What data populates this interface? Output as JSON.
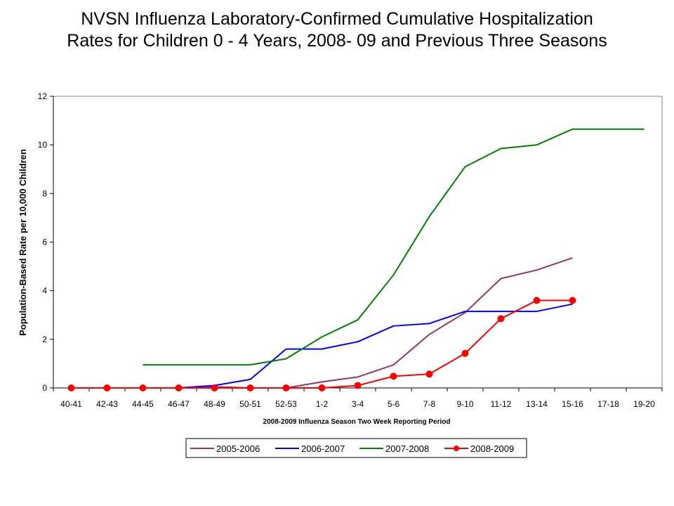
{
  "chart_data": {
    "type": "line",
    "title_line1": "NVSN Influenza Laboratory-Confirmed Cumulative Hospitalization",
    "title_line2": "Rates for Children 0 - 4 Years, 2008- 09 and Previous Three Seasons",
    "xlabel": "2008-2009 Influenza Season Two Week Reporting Period",
    "ylabel": "Population-Based Rate per 10,000 Children",
    "ylim": [
      0,
      12
    ],
    "yticks": [
      "0",
      "2",
      "4",
      "6",
      "8",
      "10",
      "12"
    ],
    "categories": [
      "40-41",
      "42-43",
      "44-45",
      "46-47",
      "48-49",
      "50-51",
      "52-53",
      "1-2",
      "3-4",
      "5-6",
      "7-8",
      "9-10",
      "11-12",
      "13-14",
      "15-16",
      "17-18",
      "19-20"
    ],
    "grid": false,
    "legend_position": "bottom",
    "series": [
      {
        "name": "2005-2006",
        "color": "#993366",
        "marker": "none",
        "values": [
          null,
          null,
          null,
          0,
          0.05,
          0,
          0,
          0.25,
          0.45,
          0.95,
          2.2,
          3.1,
          4.5,
          4.85,
          5.35,
          null,
          null
        ]
      },
      {
        "name": "2006-2007",
        "color": "#0000ff",
        "marker": "none",
        "values": [
          null,
          null,
          null,
          0,
          0.1,
          0.35,
          1.6,
          1.6,
          1.9,
          2.55,
          2.65,
          3.15,
          3.15,
          3.15,
          3.45,
          null,
          null
        ]
      },
      {
        "name": "2007-2008",
        "color": "#008000",
        "marker": "none",
        "values": [
          null,
          null,
          0.95,
          0.95,
          0.95,
          0.95,
          1.2,
          2.1,
          2.8,
          4.65,
          7.05,
          9.1,
          9.85,
          10.0,
          10.65,
          10.65,
          10.65
        ]
      },
      {
        "name": "2008-2009",
        "color": "#ff0000",
        "marker": "circle",
        "values": [
          0,
          0,
          0,
          0,
          0,
          0,
          0,
          0,
          0.1,
          0.48,
          0.57,
          1.42,
          2.85,
          3.6,
          3.6,
          null,
          null
        ]
      }
    ]
  }
}
